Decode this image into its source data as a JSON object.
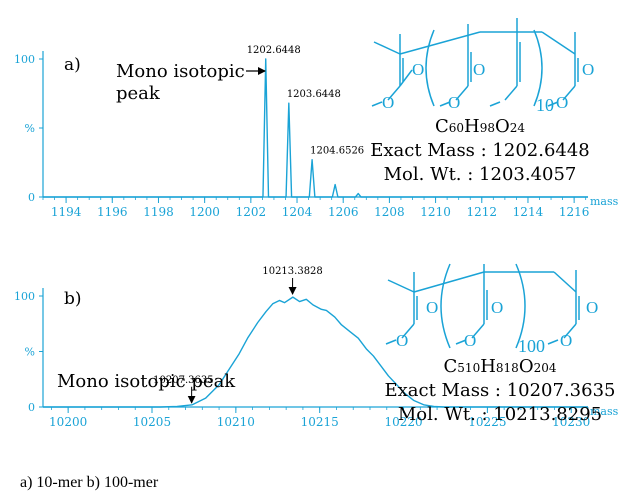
{
  "caption": "a) 10-mer   b) 100-mer",
  "colors": {
    "trace": "#1aa3d6",
    "text": "#000000"
  },
  "chart_data": [
    {
      "type": "line",
      "panel_label": "a)",
      "xlabel": "mass",
      "ylabel": "%",
      "xlim": [
        1193,
        1216.6
      ],
      "ylim": [
        0,
        100
      ],
      "x_ticks": [
        1194,
        1196,
        1198,
        1200,
        1202,
        1204,
        1206,
        1208,
        1210,
        1212,
        1214,
        1216
      ],
      "y_tick_labels": [
        "0",
        "%",
        "100"
      ],
      "grid": false,
      "peaks": [
        {
          "x": 1202.6448,
          "y": 100
        },
        {
          "x": 1203.6448,
          "y": 68
        },
        {
          "x": 1204.6526,
          "y": 27
        },
        {
          "x": 1205.65,
          "y": 9
        },
        {
          "x": 1206.65,
          "y": 2.5
        }
      ],
      "peak_labels": [
        {
          "x": 1202.6448,
          "y": 100,
          "text": "1202.6448"
        },
        {
          "x": 1203.6448,
          "y": 68,
          "text": "1203.6448"
        },
        {
          "x": 1204.6526,
          "y": 27,
          "text": "1204.6526"
        }
      ],
      "annotation": [
        "Mono isotopic",
        "peak"
      ],
      "structure": {
        "repeat": "10",
        "formula": {
          "c": "60",
          "h": "98",
          "o": "24"
        },
        "exact_mass": "Exact Mass : 1202.6448",
        "mol_wt": "Mol. Wt. : 1203.4057",
        "o_labels": [
          "O",
          "O",
          "O",
          "O",
          "O",
          "O"
        ]
      }
    },
    {
      "type": "line",
      "panel_label": "b)",
      "xlabel": "mass",
      "ylabel": "%",
      "xlim": [
        10198.5,
        10231
      ],
      "ylim": [
        0,
        100
      ],
      "x_ticks": [
        10200,
        10205,
        10210,
        10215,
        10220,
        10225,
        10230
      ],
      "y_tick_labels": [
        "0",
        "%",
        "100"
      ],
      "grid": false,
      "envelope": [
        [
          10198.5,
          0
        ],
        [
          10205.5,
          0
        ],
        [
          10206.5,
          0.5
        ],
        [
          10207.4,
          2
        ],
        [
          10208.2,
          8
        ],
        [
          10209.0,
          20
        ],
        [
          10209.6,
          34
        ],
        [
          10210.2,
          48
        ],
        [
          10210.7,
          62
        ],
        [
          10211.3,
          76
        ],
        [
          10211.8,
          86
        ],
        [
          10212.2,
          93
        ],
        [
          10212.6,
          96
        ],
        [
          10212.9,
          94
        ],
        [
          10213.4,
          99
        ],
        [
          10213.8,
          95
        ],
        [
          10214.2,
          97
        ],
        [
          10214.6,
          92
        ],
        [
          10215.1,
          88
        ],
        [
          10215.4,
          87
        ],
        [
          10215.9,
          81
        ],
        [
          10216.3,
          74
        ],
        [
          10216.8,
          68
        ],
        [
          10217.3,
          62
        ],
        [
          10217.8,
          52
        ],
        [
          10218.2,
          46
        ],
        [
          10218.6,
          38
        ],
        [
          10219.1,
          28
        ],
        [
          10219.6,
          20
        ],
        [
          10220.1,
          12
        ],
        [
          10220.6,
          6
        ],
        [
          10221.2,
          2
        ],
        [
          10221.8,
          0.5
        ],
        [
          10222.4,
          0
        ],
        [
          10231,
          0
        ]
      ],
      "peak_labels": [
        {
          "x": 10213.3828,
          "y": 100,
          "text": "10213.3828"
        },
        {
          "x": 10207.3635,
          "y": 2,
          "text": "10207.3635"
        }
      ],
      "annotation": [
        "Mono isotopic peak"
      ],
      "structure": {
        "repeat": "100",
        "formula": {
          "c": "510",
          "h": "818",
          "o": "204"
        },
        "exact_mass": "Exact Mass : 10207.3635",
        "mol_wt": "Mol. Wt. : 10213.8295",
        "o_labels": [
          "O",
          "O",
          "O",
          "O",
          "O",
          "O"
        ]
      }
    }
  ]
}
